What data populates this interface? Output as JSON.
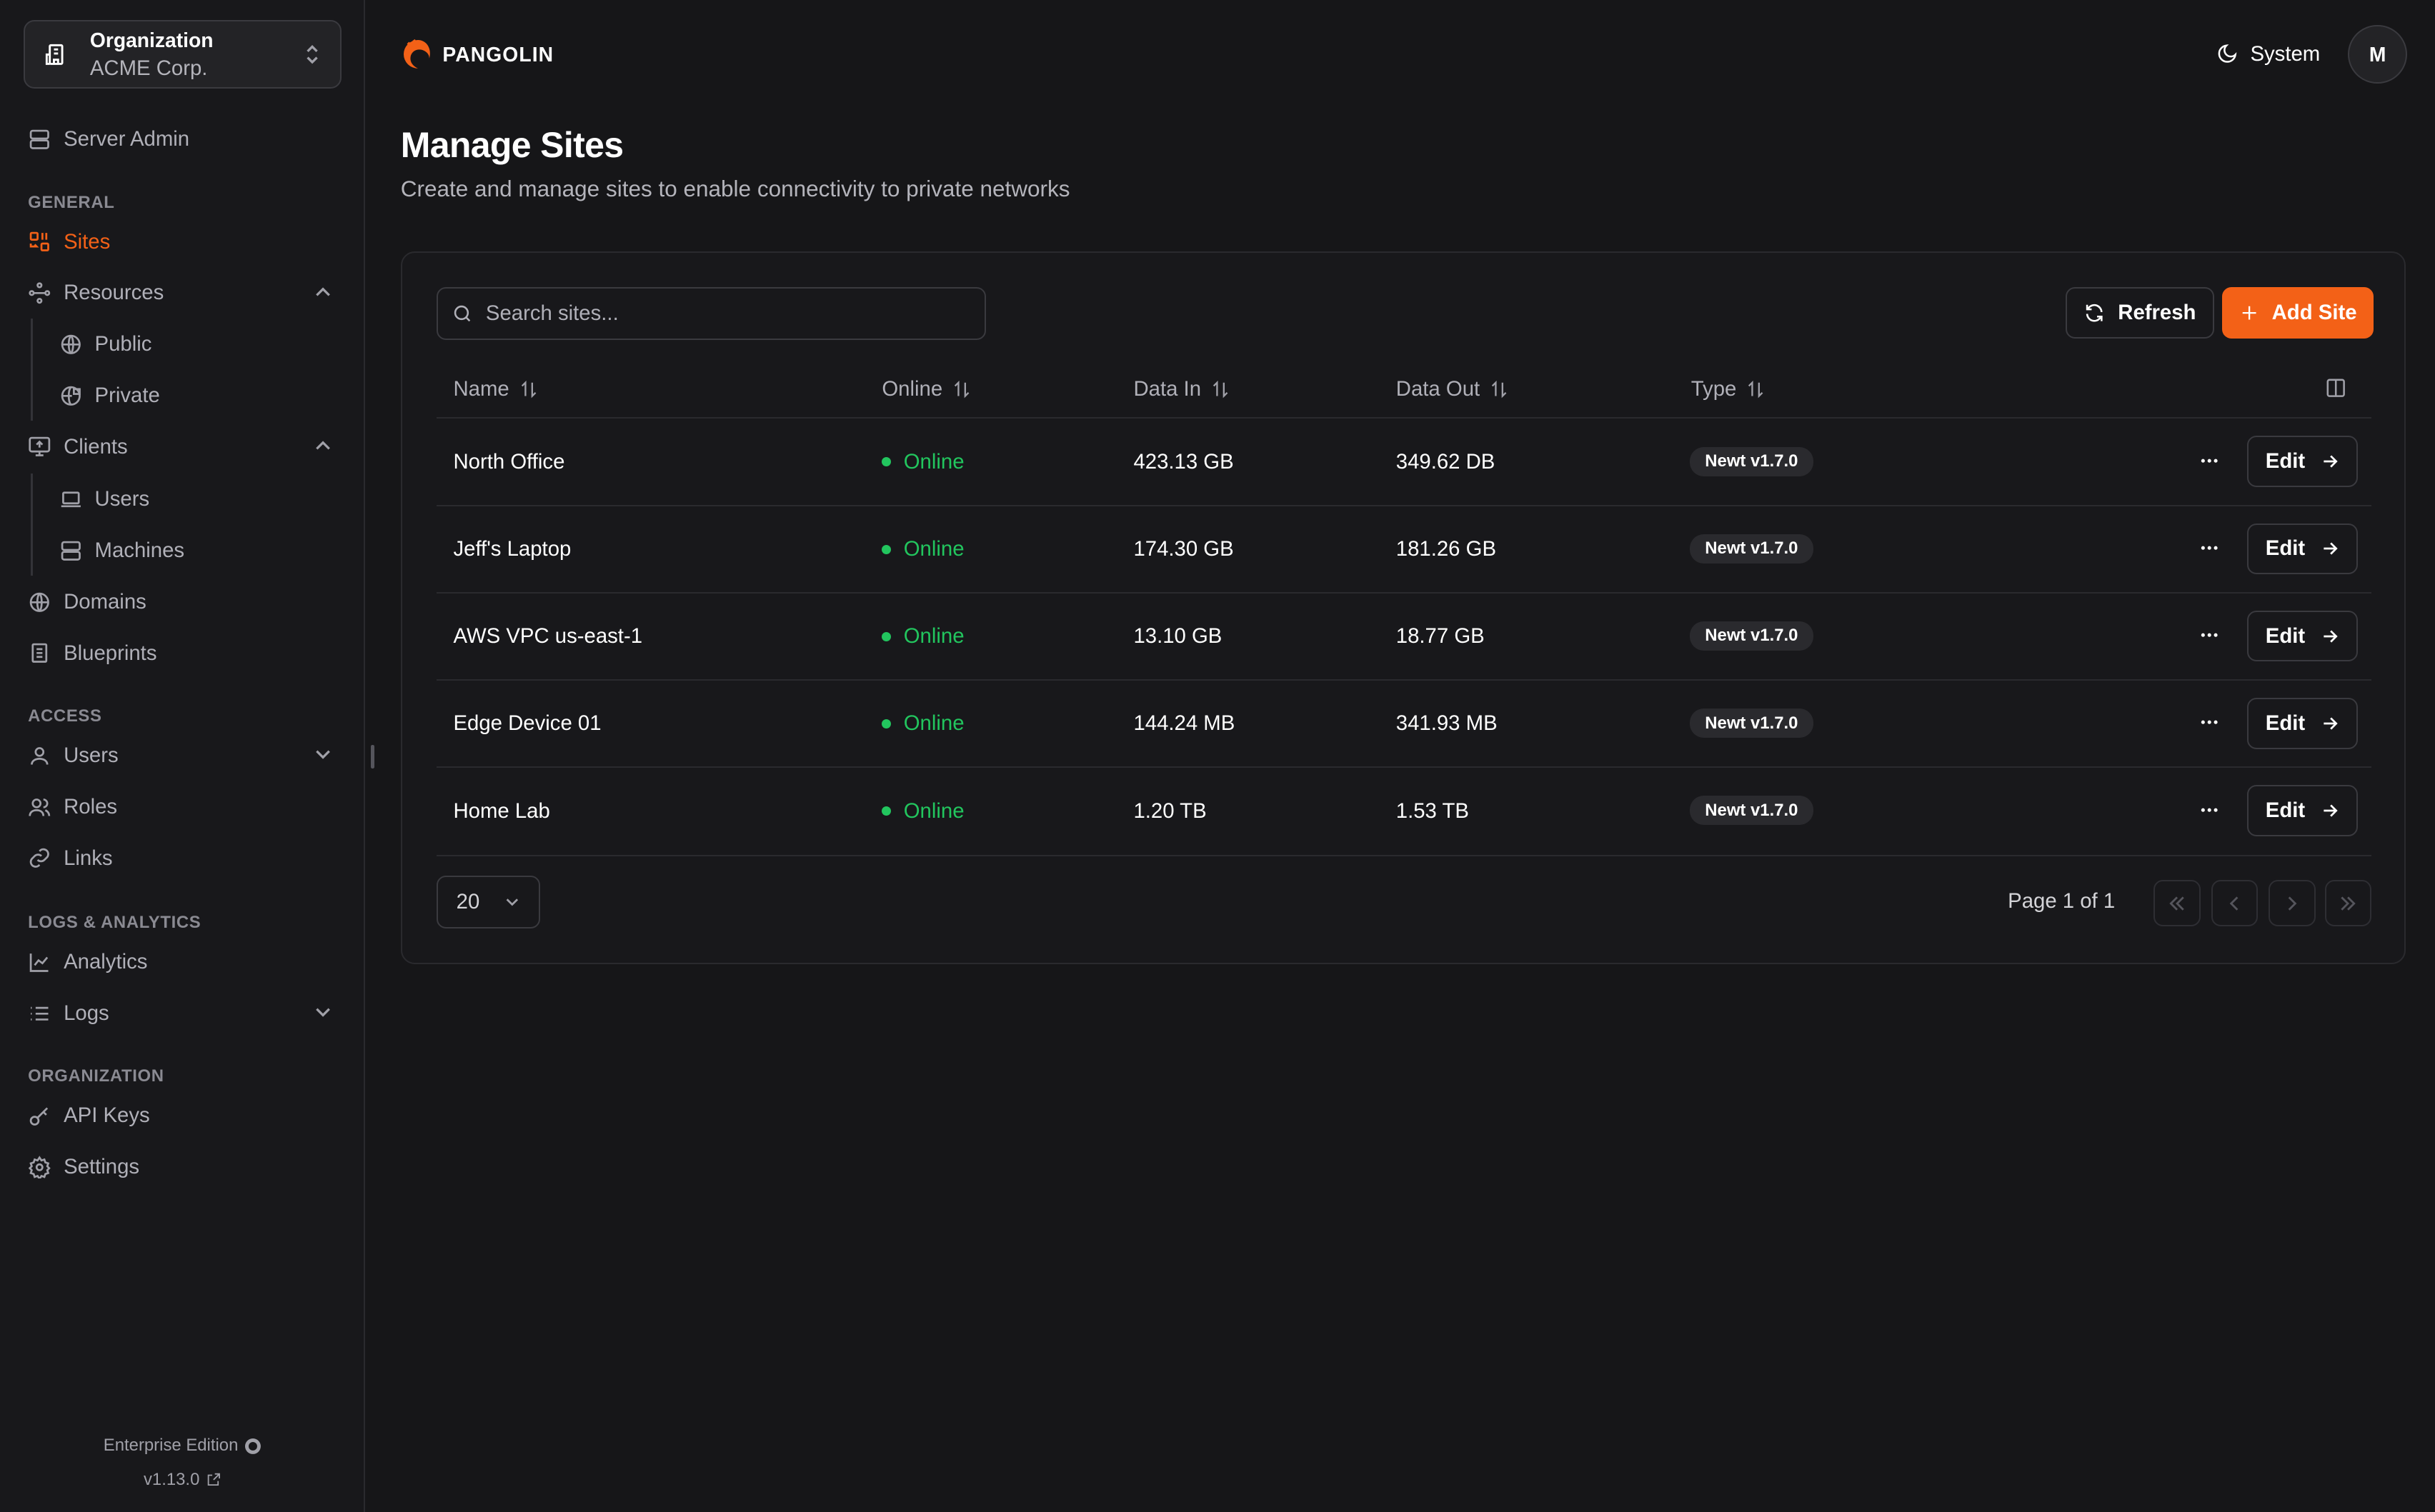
{
  "org": {
    "label": "Organization",
    "name": "ACME Corp."
  },
  "sidebar": {
    "server_admin": "Server Admin",
    "sections": {
      "general": "GENERAL",
      "access": "ACCESS",
      "logs": "LOGS & ANALYTICS",
      "organization": "ORGANIZATION"
    },
    "items": {
      "sites": "Sites",
      "resources": "Resources",
      "public": "Public",
      "private": "Private",
      "clients": "Clients",
      "users_client": "Users",
      "machines": "Machines",
      "domains": "Domains",
      "blueprints": "Blueprints",
      "users": "Users",
      "roles": "Roles",
      "links": "Links",
      "analytics": "Analytics",
      "logs": "Logs",
      "api_keys": "API Keys",
      "settings": "Settings"
    },
    "edition": "Enterprise Edition",
    "version": "v1.13.0"
  },
  "header": {
    "brand": "PANGOLIN",
    "theme": "System",
    "avatar": "M"
  },
  "page": {
    "title": "Manage Sites",
    "subtitle": "Create and manage sites to enable connectivity to private networks"
  },
  "toolbar": {
    "search_placeholder": "Search sites...",
    "refresh": "Refresh",
    "add": "Add Site"
  },
  "table": {
    "columns": [
      "Name",
      "Online",
      "Data In",
      "Data Out",
      "Type"
    ],
    "rows": [
      {
        "name": "North Office",
        "status": "Online",
        "data_in": "423.13 GB",
        "data_out": "349.62 DB",
        "type": "Newt v1.7.0",
        "edit": "Edit"
      },
      {
        "name": "Jeff's Laptop",
        "status": "Online",
        "data_in": "174.30 GB",
        "data_out": "181.26 GB",
        "type": "Newt v1.7.0",
        "edit": "Edit"
      },
      {
        "name": "AWS VPC us-east-1",
        "status": "Online",
        "data_in": "13.10 GB",
        "data_out": "18.77 GB",
        "type": "Newt v1.7.0",
        "edit": "Edit"
      },
      {
        "name": "Edge Device 01",
        "status": "Online",
        "data_in": "144.24 MB",
        "data_out": "341.93 MB",
        "type": "Newt v1.7.0",
        "edit": "Edit"
      },
      {
        "name": "Home Lab",
        "status": "Online",
        "data_in": "1.20 TB",
        "data_out": "1.53 TB",
        "type": "Newt v1.7.0",
        "edit": "Edit"
      }
    ]
  },
  "pagination": {
    "page_size": "20",
    "info": "Page 1 of 1"
  },
  "colors": {
    "accent": "#f36117",
    "online": "#22c55e",
    "background": "#161618"
  }
}
